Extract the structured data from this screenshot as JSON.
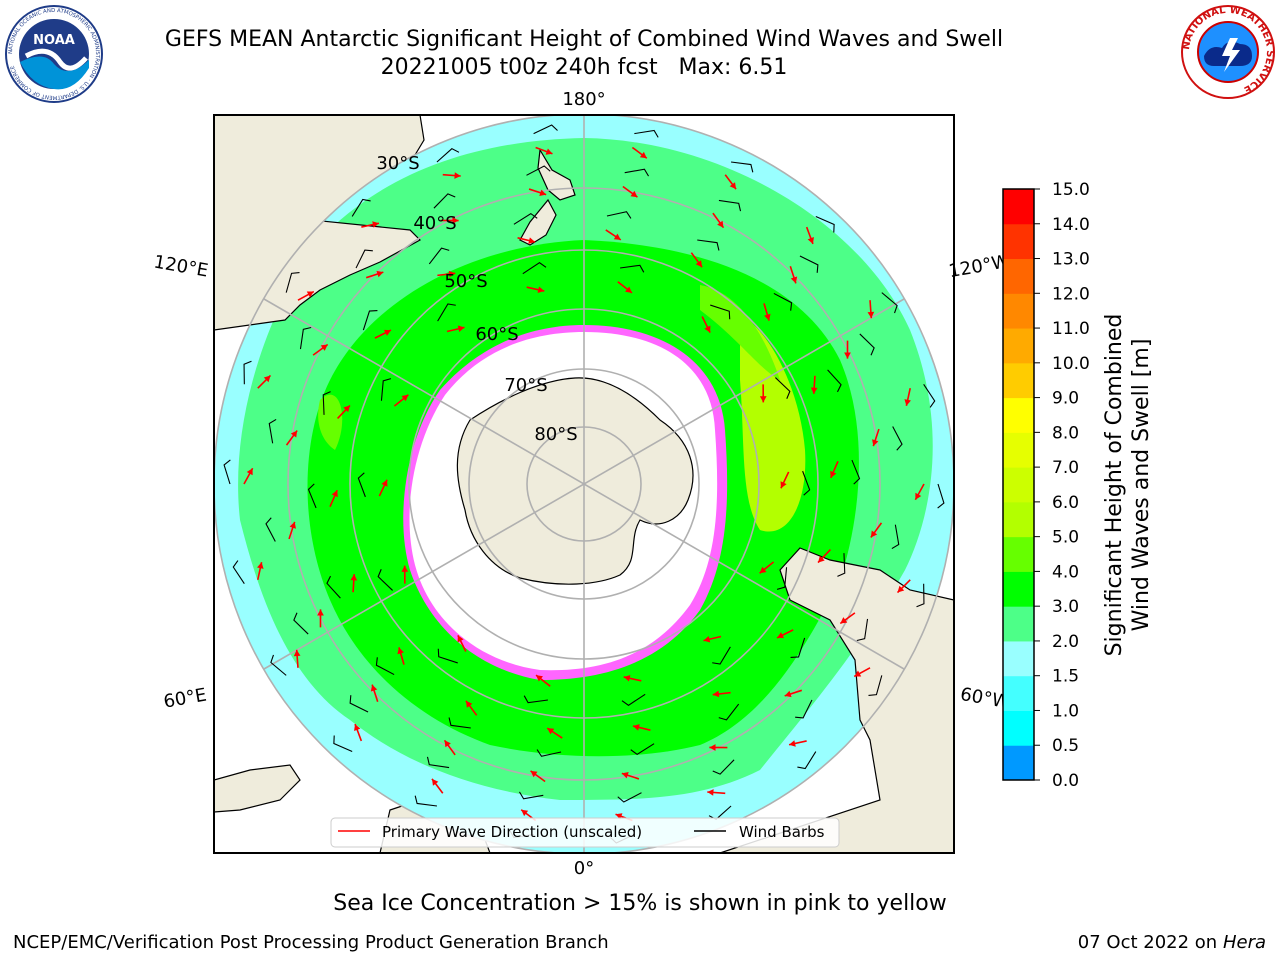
{
  "header": {
    "title_line1": "GEFS MEAN Antarctic Significant Height of Combined Wind Waves and Swell",
    "title_line2": "20221005 t00z 240h fcst   Max: 6.51"
  },
  "logos": {
    "left": {
      "name": "NOAA",
      "text": "NOAA",
      "ring_text": "NATIONAL OCEANIC AND ATMOSPHERIC ADMINISTRATION · U.S. DEPARTMENT OF COMMERCE"
    },
    "right": {
      "name": "National Weather Service",
      "ring_text": "NATIONAL WEATHER SERVICE"
    }
  },
  "map": {
    "projection": "south polar stereographic",
    "longitude_labels": {
      "top": "180°",
      "bottom": "0°",
      "upper_left": "120°E",
      "upper_right": "120°W",
      "lower_left": "60°E",
      "lower_right": "60°W"
    },
    "latitude_labels": [
      "30°S",
      "40°S",
      "50°S",
      "60°S",
      "70°S",
      "80°S"
    ],
    "legend": {
      "wave_direction": "Primary Wave Direction (unscaled)",
      "wind_barbs": "Wind Barbs"
    },
    "colors": {
      "land": "#efecdc",
      "ice": "#ffffff",
      "arrow": "#ff0000",
      "barb": "#000000"
    }
  },
  "colorbar": {
    "label_line1": "Significant Height of Combined",
    "label_line2": "Wind Waves and Swell [m]",
    "ticks": [
      "15.0",
      "14.0",
      "13.0",
      "12.0",
      "11.0",
      "10.0",
      "9.0",
      "8.0",
      "7.0",
      "6.0",
      "5.0",
      "4.0",
      "3.0",
      "2.0",
      "1.5",
      "1.0",
      "0.5",
      "0.0"
    ],
    "colors": [
      "#ff0000",
      "#ff3300",
      "#ff6600",
      "#ff8800",
      "#ffaa00",
      "#ffcc00",
      "#ffff00",
      "#e6ff00",
      "#ccff00",
      "#b3ff00",
      "#66ff00",
      "#00ff00",
      "#4dff88",
      "#99ffff",
      "#44ffff",
      "#00ffff",
      "#0099ff",
      "#0066ff",
      "#0000ff"
    ]
  },
  "subtitle": "Sea Ice Concentration > 15% is shown in pink to yellow",
  "footer": {
    "left": "NCEP/EMC/Verification Post Processing Product Generation Branch",
    "date": "07 Oct 2022 on ",
    "host": "Hera"
  }
}
